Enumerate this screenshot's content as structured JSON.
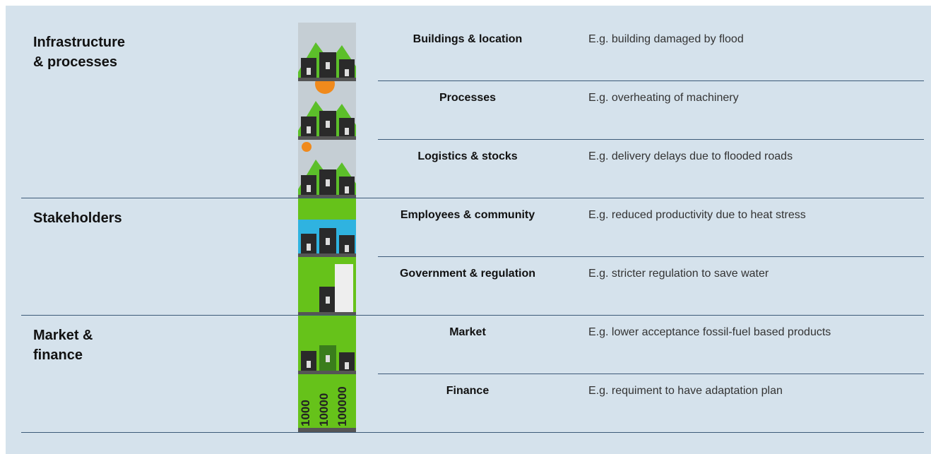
{
  "groups": [
    {
      "title": [
        "Infrastructure",
        "& processes"
      ],
      "rows": [
        {
          "name": "Buildings & location",
          "example": "E.g. building damaged by flood"
        },
        {
          "name": "Processes",
          "example": "E.g. overheating of machinery"
        },
        {
          "name": "Logistics & stocks",
          "example": "E.g. delivery delays due to flooded roads"
        }
      ]
    },
    {
      "title": [
        "Stakeholders"
      ],
      "rows": [
        {
          "name": "Employees & community",
          "example": "E.g. reduced productivity due to heat stress"
        },
        {
          "name": "Government & regulation",
          "example": "E.g. stricter regulation to save water"
        }
      ]
    },
    {
      "title": [
        "Market &",
        "finance"
      ],
      "rows": [
        {
          "name": "Market",
          "example": "E.g. lower acceptance fossil-fuel based products"
        },
        {
          "name": "Finance",
          "example": "E.g. requiment to have adaptation plan",
          "icon_text": [
            "1000",
            "10000",
            "100000"
          ]
        }
      ]
    }
  ]
}
